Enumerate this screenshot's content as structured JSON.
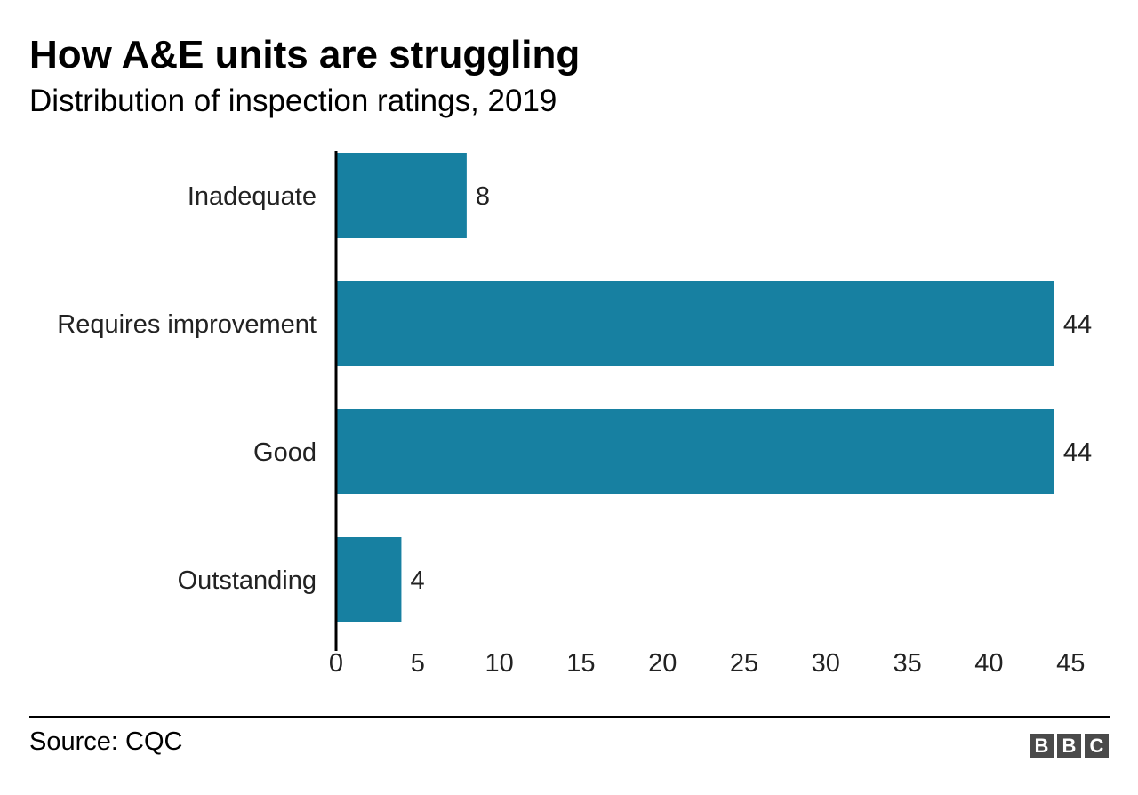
{
  "header": {
    "title": "How A&E units are struggling",
    "subtitle": "Distribution of inspection ratings, 2019"
  },
  "footer": {
    "source": "Source: CQC",
    "logo_letters": [
      "B",
      "B",
      "C"
    ]
  },
  "colors": {
    "bar": "#1780a1",
    "axis": "#000000",
    "logo": "#4a4a4a"
  },
  "chart_data": {
    "type": "bar",
    "orientation": "horizontal",
    "title": "How A&E units are struggling",
    "subtitle": "Distribution of inspection ratings, 2019",
    "categories": [
      "Inadequate",
      "Requires improvement",
      "Good",
      "Outstanding"
    ],
    "values": [
      8,
      44,
      44,
      4
    ],
    "data_labels": [
      "8",
      "44",
      "44",
      "4"
    ],
    "xlim": [
      0,
      45
    ],
    "xticks": [
      0,
      5,
      10,
      15,
      20,
      25,
      30,
      35,
      40,
      45
    ],
    "xlabel": "",
    "ylabel": "",
    "grid": false,
    "legend": "none"
  }
}
